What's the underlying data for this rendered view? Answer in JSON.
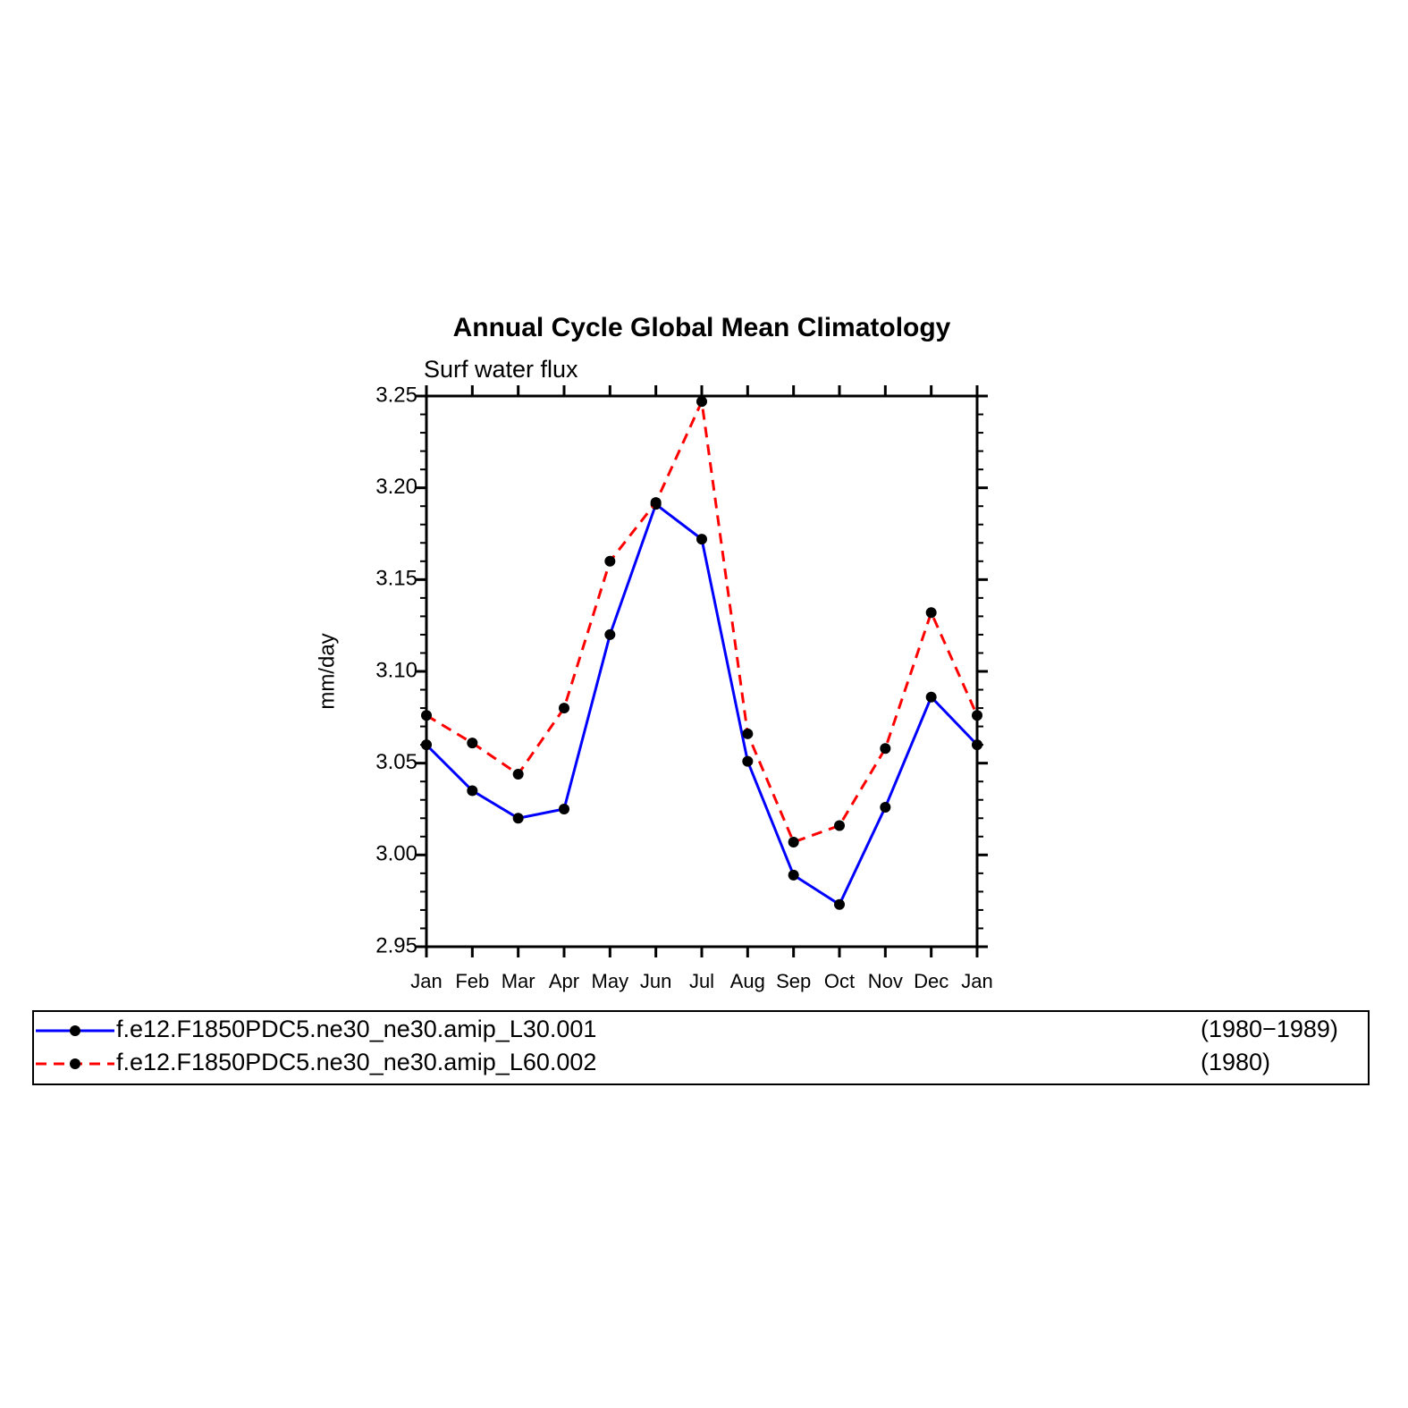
{
  "chart_data": {
    "type": "line",
    "title": "Annual Cycle Global Mean Climatology",
    "subtitle": "Surf water flux",
    "y_label": "mm/day",
    "categories": [
      "Jan",
      "Feb",
      "Mar",
      "Apr",
      "May",
      "Jun",
      "Jul",
      "Aug",
      "Sep",
      "Oct",
      "Nov",
      "Dec",
      "Jan"
    ],
    "series": [
      {
        "name": "f.e12.F1850PDC5.ne30_ne30.amip_L30.001",
        "period": "(1980−1989)",
        "color": "#0000ff",
        "line_style": "solid",
        "marker_color": "#000000",
        "values": [
          3.06,
          3.035,
          3.02,
          3.025,
          3.12,
          3.191,
          3.172,
          3.051,
          2.989,
          2.973,
          3.026,
          3.086,
          3.06
        ]
      },
      {
        "name": "f.e12.F1850PDC5.ne30_ne30.amip_L60.002",
        "period": "(1980)",
        "color": "#ff0000",
        "line_style": "dashed",
        "marker_color": "#000000",
        "values": [
          3.076,
          3.061,
          3.044,
          3.08,
          3.16,
          3.192,
          3.247,
          3.066,
          3.007,
          3.016,
          3.058,
          3.132,
          3.076
        ]
      }
    ],
    "ylim": [
      2.95,
      3.25
    ],
    "yticks": [
      2.95,
      {
        "value": 3.0,
        "label": "3.00"
      },
      3.05,
      {
        "value": 3.1,
        "label": "3.10"
      },
      3.15,
      {
        "value": 3.2,
        "label": "3.20"
      },
      3.25
    ],
    "grid": false,
    "legend": "bottom"
  }
}
